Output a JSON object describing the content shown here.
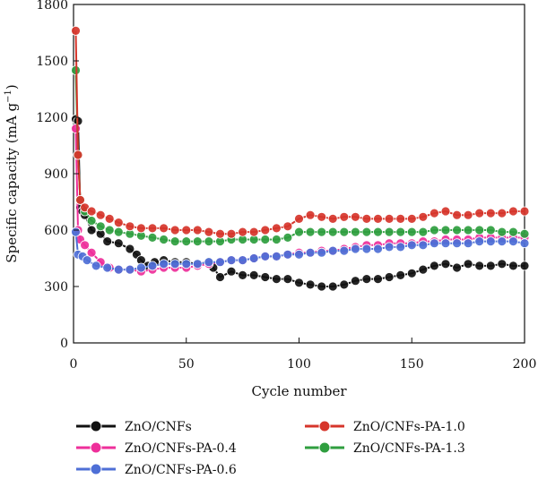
{
  "chart_data": {
    "type": "line",
    "xlabel": "Cycle number",
    "ylabel": "Specific capacity (mA g",
    "ylabel_sup": "−1",
    "ylabel_close": ")",
    "xlim": [
      0,
      200
    ],
    "ylim": [
      0,
      1800
    ],
    "xticks": [
      0,
      50,
      100,
      150,
      200
    ],
    "yticks": [
      0,
      300,
      600,
      900,
      1200,
      1500,
      1800
    ],
    "legend_position": "bottom",
    "series": [
      {
        "name": "ZnO/CNFs",
        "color": "#111111",
        "points": [
          [
            1,
            1190
          ],
          [
            2,
            1180
          ],
          [
            3,
            720
          ],
          [
            4,
            700
          ],
          [
            5,
            680
          ],
          [
            8,
            600
          ],
          [
            12,
            580
          ],
          [
            15,
            540
          ],
          [
            20,
            530
          ],
          [
            25,
            500
          ],
          [
            28,
            470
          ],
          [
            30,
            440
          ],
          [
            33,
            410
          ],
          [
            36,
            430
          ],
          [
            40,
            440
          ],
          [
            45,
            430
          ],
          [
            50,
            430
          ],
          [
            55,
            420
          ],
          [
            60,
            430
          ],
          [
            62,
            400
          ],
          [
            65,
            350
          ],
          [
            70,
            380
          ],
          [
            75,
            360
          ],
          [
            80,
            360
          ],
          [
            85,
            350
          ],
          [
            90,
            340
          ],
          [
            95,
            340
          ],
          [
            100,
            320
          ],
          [
            105,
            310
          ],
          [
            110,
            300
          ],
          [
            115,
            300
          ],
          [
            120,
            310
          ],
          [
            125,
            330
          ],
          [
            130,
            340
          ],
          [
            135,
            340
          ],
          [
            140,
            350
          ],
          [
            145,
            360
          ],
          [
            150,
            370
          ],
          [
            155,
            390
          ],
          [
            160,
            410
          ],
          [
            165,
            420
          ],
          [
            170,
            400
          ],
          [
            175,
            420
          ],
          [
            180,
            410
          ],
          [
            185,
            410
          ],
          [
            190,
            420
          ],
          [
            195,
            410
          ],
          [
            200,
            410
          ]
        ]
      },
      {
        "name": "ZnO/CNFs-PA-0.4",
        "color": "#ee2f9a",
        "points": [
          [
            1,
            1140
          ],
          [
            2,
            600
          ],
          [
            3,
            550
          ],
          [
            5,
            520
          ],
          [
            8,
            480
          ],
          [
            12,
            430
          ],
          [
            16,
            400
          ],
          [
            20,
            390
          ],
          [
            25,
            390
          ],
          [
            30,
            380
          ],
          [
            35,
            390
          ],
          [
            40,
            400
          ],
          [
            45,
            400
          ],
          [
            50,
            400
          ],
          [
            55,
            410
          ],
          [
            60,
            420
          ],
          [
            65,
            430
          ],
          [
            70,
            440
          ],
          [
            75,
            440
          ],
          [
            80,
            450
          ],
          [
            85,
            460
          ],
          [
            90,
            460
          ],
          [
            95,
            470
          ],
          [
            100,
            480
          ],
          [
            105,
            480
          ],
          [
            110,
            490
          ],
          [
            115,
            490
          ],
          [
            120,
            500
          ],
          [
            125,
            510
          ],
          [
            130,
            520
          ],
          [
            135,
            520
          ],
          [
            140,
            530
          ],
          [
            145,
            530
          ],
          [
            150,
            530
          ],
          [
            155,
            540
          ],
          [
            160,
            540
          ],
          [
            165,
            550
          ],
          [
            170,
            550
          ],
          [
            175,
            550
          ],
          [
            180,
            560
          ],
          [
            185,
            560
          ],
          [
            190,
            560
          ],
          [
            195,
            560
          ],
          [
            200,
            560
          ]
        ]
      },
      {
        "name": "ZnO/CNFs-PA-0.6",
        "color": "#4e6fd6",
        "points": [
          [
            1,
            590
          ],
          [
            2,
            470
          ],
          [
            4,
            460
          ],
          [
            6,
            440
          ],
          [
            10,
            410
          ],
          [
            15,
            400
          ],
          [
            20,
            390
          ],
          [
            25,
            390
          ],
          [
            30,
            400
          ],
          [
            35,
            410
          ],
          [
            40,
            420
          ],
          [
            45,
            420
          ],
          [
            50,
            420
          ],
          [
            55,
            420
          ],
          [
            60,
            430
          ],
          [
            65,
            430
          ],
          [
            70,
            440
          ],
          [
            75,
            440
          ],
          [
            80,
            450
          ],
          [
            85,
            460
          ],
          [
            90,
            460
          ],
          [
            95,
            470
          ],
          [
            100,
            470
          ],
          [
            105,
            480
          ],
          [
            110,
            480
          ],
          [
            115,
            490
          ],
          [
            120,
            490
          ],
          [
            125,
            500
          ],
          [
            130,
            500
          ],
          [
            135,
            500
          ],
          [
            140,
            510
          ],
          [
            145,
            510
          ],
          [
            150,
            520
          ],
          [
            155,
            520
          ],
          [
            160,
            530
          ],
          [
            165,
            530
          ],
          [
            170,
            530
          ],
          [
            175,
            530
          ],
          [
            180,
            540
          ],
          [
            185,
            540
          ],
          [
            190,
            540
          ],
          [
            195,
            540
          ],
          [
            200,
            530
          ]
        ]
      },
      {
        "name": "ZnO/CNFs-PA-1.0",
        "color": "#d6352b",
        "points": [
          [
            1,
            1660
          ],
          [
            2,
            1000
          ],
          [
            3,
            760
          ],
          [
            5,
            720
          ],
          [
            8,
            700
          ],
          [
            12,
            680
          ],
          [
            16,
            660
          ],
          [
            20,
            640
          ],
          [
            25,
            620
          ],
          [
            30,
            610
          ],
          [
            35,
            610
          ],
          [
            40,
            610
          ],
          [
            45,
            600
          ],
          [
            50,
            600
          ],
          [
            55,
            600
          ],
          [
            60,
            590
          ],
          [
            65,
            580
          ],
          [
            70,
            580
          ],
          [
            75,
            590
          ],
          [
            80,
            590
          ],
          [
            85,
            600
          ],
          [
            90,
            610
          ],
          [
            95,
            620
          ],
          [
            100,
            660
          ],
          [
            105,
            680
          ],
          [
            110,
            670
          ],
          [
            115,
            660
          ],
          [
            120,
            670
          ],
          [
            125,
            670
          ],
          [
            130,
            660
          ],
          [
            135,
            660
          ],
          [
            140,
            660
          ],
          [
            145,
            660
          ],
          [
            150,
            660
          ],
          [
            155,
            670
          ],
          [
            160,
            690
          ],
          [
            165,
            700
          ],
          [
            170,
            680
          ],
          [
            175,
            680
          ],
          [
            180,
            690
          ],
          [
            185,
            690
          ],
          [
            190,
            690
          ],
          [
            195,
            700
          ],
          [
            200,
            700
          ]
        ]
      },
      {
        "name": "ZnO/CNFs-PA-1.3",
        "color": "#2f9e3f",
        "points": [
          [
            1,
            1450
          ],
          [
            2,
            1000
          ],
          [
            3,
            760
          ],
          [
            5,
            700
          ],
          [
            8,
            650
          ],
          [
            12,
            620
          ],
          [
            16,
            600
          ],
          [
            20,
            590
          ],
          [
            25,
            580
          ],
          [
            30,
            570
          ],
          [
            35,
            560
          ],
          [
            40,
            550
          ],
          [
            45,
            540
          ],
          [
            50,
            540
          ],
          [
            55,
            540
          ],
          [
            60,
            540
          ],
          [
            65,
            540
          ],
          [
            70,
            550
          ],
          [
            75,
            550
          ],
          [
            80,
            550
          ],
          [
            85,
            550
          ],
          [
            90,
            550
          ],
          [
            95,
            560
          ],
          [
            100,
            590
          ],
          [
            105,
            590
          ],
          [
            110,
            590
          ],
          [
            115,
            590
          ],
          [
            120,
            590
          ],
          [
            125,
            590
          ],
          [
            130,
            590
          ],
          [
            135,
            590
          ],
          [
            140,
            590
          ],
          [
            145,
            590
          ],
          [
            150,
            590
          ],
          [
            155,
            590
          ],
          [
            160,
            600
          ],
          [
            165,
            600
          ],
          [
            170,
            600
          ],
          [
            175,
            600
          ],
          [
            180,
            600
          ],
          [
            185,
            600
          ],
          [
            190,
            590
          ],
          [
            195,
            590
          ],
          [
            200,
            580
          ]
        ]
      }
    ]
  }
}
